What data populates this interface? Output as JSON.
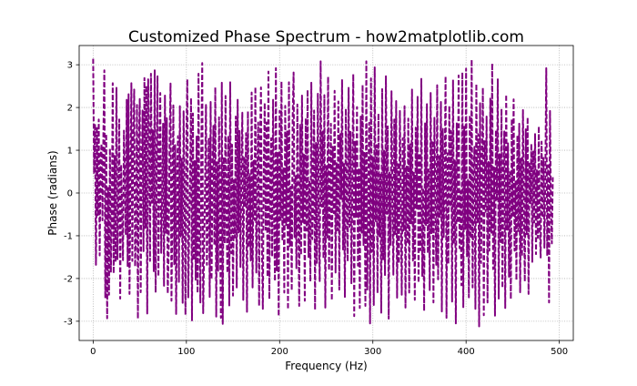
{
  "chart_data": {
    "type": "line",
    "title": "Customized Phase Spectrum - how2matplotlib.com",
    "xlabel": "Frequency (Hz)",
    "ylabel": "Phase (radians)",
    "xlim": [
      -15,
      515
    ],
    "ylim": [
      -3.45,
      3.45
    ],
    "x_ticks": [
      0,
      100,
      200,
      300,
      400,
      500
    ],
    "x_tick_labels": [
      "0",
      "100",
      "200",
      "300",
      "400",
      "500"
    ],
    "y_ticks": [
      -3,
      -2,
      -1,
      0,
      1,
      2,
      3
    ],
    "y_tick_labels": [
      "-3",
      "-2",
      "-1",
      "0",
      "1",
      "2",
      "3"
    ],
    "grid": true,
    "grid_style": "dotted",
    "line_style": "dashed",
    "series": [
      {
        "color": "#800080",
        "x_start": 0,
        "x_step": 1,
        "values": [
          3.14,
          0.45,
          1.62,
          -1.68,
          1.55,
          -0.52,
          1.72,
          -1.46,
          0.83,
          1.15,
          -0.64,
          1.41,
          2.87,
          -2.46,
          1.38,
          -2.93,
          0.12,
          -2.38,
          1.04,
          -1.86,
          -0.54,
          2.57,
          -1.88,
          0.87,
          -1.62,
          2.46,
          -1.55,
          -0.21,
          1.72,
          -2.47,
          0.66,
          -0.34,
          -1.57,
          1.46,
          0.38,
          -0.98,
          2.18,
          -1.71,
          2.31,
          -2.36,
          0.13,
          2.57,
          -1.59,
          1.05,
          2.42,
          -1.72,
          -0.83,
          2.06,
          -2.94,
          1.09,
          2.2,
          -2.32,
          0.49,
          1.93,
          -1.36,
          2.69,
          -0.82,
          2.51,
          -2.82,
          2.66,
          1.13,
          -1.59,
          2.79,
          -0.23,
          1.47,
          -1.83,
          2.87,
          -2.33,
          0.41,
          2.73,
          -1.95,
          0.64,
          2.34,
          -1.4,
          -0.1,
          1.62,
          -2.17,
          2.28,
          -0.93,
          1.75,
          -2.35,
          -1.37,
          1.18,
          2.56,
          -2.52,
          -0.45,
          2.05,
          -1.67,
          1.12,
          -2.83,
          0.57,
          1.33,
          -2.08,
          2.03,
          -1.02,
          0.8,
          -2.57,
          1.91,
          -0.05,
          -2.85,
          1.41,
          2.66,
          -2.44,
          -0.86,
          0.46,
          2.22,
          -2.98,
          1.86,
          -1.57,
          0.75,
          -2.03,
          1.32,
          -2.34,
          2.79,
          -1.19,
          -2.56,
          0.97,
          3.04,
          -2.81,
          -1.37,
          0.08,
          2.06,
          -1.68,
          -0.47,
          1.29,
          -2.43,
          2.13,
          -2.02,
          0.32,
          1.57,
          -1.22,
          2.47,
          -2.89,
          0.72,
          -1.82,
          1.77,
          -0.57,
          -2.92,
          2.58,
          -3.06,
          0.84,
          -1.18,
          2.27,
          -0.6,
          -1.87,
          1.34,
          -2.63,
          2.59,
          -1.41,
          1.13,
          -2.4,
          0.3,
          -1.04,
          1.79,
          -2.21,
          2.18,
          -0.92,
          1.45,
          -1.73,
          0.62,
          1.88,
          -2.5,
          0.85,
          -0.33,
          1.4,
          -2.78,
          1.91,
          -1.27,
          0.44,
          -1.58,
          2.35,
          -2.21,
          0.75,
          -0.63,
          2.48,
          -1.86,
          0.36,
          1.65,
          -2.64,
          1.21,
          2.47,
          -1.24,
          -2.71,
          0.57,
          2.11,
          -0.86,
          1.65,
          -1.96,
          2.84,
          -2.48,
          0.37,
          1.28,
          -1.49,
          2.18,
          -0.52,
          -2.06,
          2.92,
          -1.81,
          0.96,
          -2.88,
          1.92,
          -0.63,
          2.61,
          -1.12,
          0.58,
          -2.33,
          2.04,
          -0.77,
          1.44,
          -2.72,
          2.59,
          -1.24,
          0.15,
          -2.28,
          1.78,
          2.82,
          -1.03,
          0.42,
          -1.76,
          2.07,
          -0.33,
          -2.64,
          1.61,
          -1.45,
          2.28,
          -0.68,
          0.9,
          -2.52,
          1.75,
          -0.88,
          2.41,
          -1.5,
          0.3,
          -2.07,
          2.58,
          -1.08,
          -0.2,
          1.93,
          -2.73,
          1.17,
          -1.66,
          2.32,
          -0.64,
          -2.06,
          3.08,
          -0.32,
          1.46,
          -1.53,
          2.29,
          -2.68,
          0.63,
          -1.04,
          2.72,
          -1.81,
          0.17,
          1.62,
          -2.51,
          1.08,
          -0.47,
          2.39,
          -1.86,
          0.72,
          -0.87,
          2.14,
          -2.26,
          1.38,
          -0.14,
          2.64,
          -1.32,
          0.68,
          -2.43,
          1.97,
          -0.26,
          -1.6,
          2.46,
          -0.79,
          1.43,
          -2.11,
          0.36,
          2.78,
          -2.88,
          1.2,
          -0.56,
          2.01,
          -1.7,
          0.58,
          -2.69,
          1.79,
          -0.93,
          2.53,
          -1.22,
          0.96,
          -2.64,
          3.08,
          -2.26,
          0.07,
          1.64,
          -3.05,
          2.68,
          -1.38,
          0.84,
          -2.62,
          2.94,
          -0.68,
          1.12,
          -2.34,
          1.86,
          -1.01,
          0.46,
          -2.8,
          2.43,
          -1.57,
          0.99,
          -1.92,
          2.73,
          -0.49,
          1.56,
          -2.94,
          0.48,
          -1.23,
          2.38,
          -0.2,
          -1.91,
          1.72,
          -0.96,
          2.15,
          -2.45,
          0.71,
          -1.65,
          1.92,
          -0.29,
          -2.38,
          1.28,
          -0.88,
          2.03,
          -2.68,
          0.62,
          -1.19,
          1.74,
          -2.33,
          1.14,
          -0.71,
          2.42,
          -1.58,
          0.47,
          -2.5,
          1.53,
          -0.36,
          2.25,
          -2.1,
          0.93,
          -1.34,
          2.67,
          -1.94,
          0.12,
          -2.76,
          1.63,
          -0.75,
          2.08,
          -1.41,
          0.55,
          -2.27,
          2.34,
          -0.94,
          1.22,
          -2.56,
          1.76,
          -0.1,
          -1.68,
          2.52,
          -2.02,
          0.86,
          -0.56,
          2.13,
          -2.77,
          1.5,
          -1.03,
          0.46,
          2.73,
          -2.92,
          0.93,
          -1.66,
          2.04,
          -0.33,
          1.45,
          -2.54,
          2.65,
          -1.2,
          0.76,
          -3.05,
          1.63,
          -0.7,
          2.75,
          -1.29,
          0.04,
          -2.16,
          2.82,
          -2.67,
          1.55,
          -0.86,
          2.91,
          -1.48,
          0.31,
          -2.44,
          1.82,
          -1.06,
          3.12,
          -2.21,
          0.5,
          1.08,
          -2.71,
          2.55,
          -0.69,
          1.38,
          -3.12,
          2.1,
          -1.64,
          0.29,
          2.46,
          -2.86,
          1.21,
          -0.44,
          1.79,
          -2.56,
          0.73,
          -1.35,
          2.21,
          -0.93,
          3.03,
          -1.78,
          0.6,
          -2.87,
          1.47,
          -0.18,
          2.66,
          -2.47,
          0.91,
          -1.15,
          1.97,
          -2.22,
          0.38,
          1.44,
          -2.69,
          2.3,
          -0.86,
          1.16,
          -1.96,
          0.52,
          -2.48,
          1.73,
          -0.53,
          2.19,
          -1.35,
          0.27,
          -2.04,
          1.35,
          -0.89,
          1.62,
          -2.32,
          0.81,
          -1.48,
          1.94,
          -0.35,
          -2.07,
          1.49,
          -0.96,
          1.77,
          -2.36,
          0.72,
          -0.24,
          1.15,
          -1.61,
          0.97,
          -0.69,
          1.38,
          -1.43,
          0.53,
          -1.05,
          1.56,
          -0.83,
          -1.51,
          1.2,
          -0.58,
          0.82,
          -1.28,
          0.38,
          2.92,
          -1.47,
          0.65,
          -2.56,
          1.92,
          -0.33,
          -1.18,
          0.37
        ]
      }
    ]
  }
}
